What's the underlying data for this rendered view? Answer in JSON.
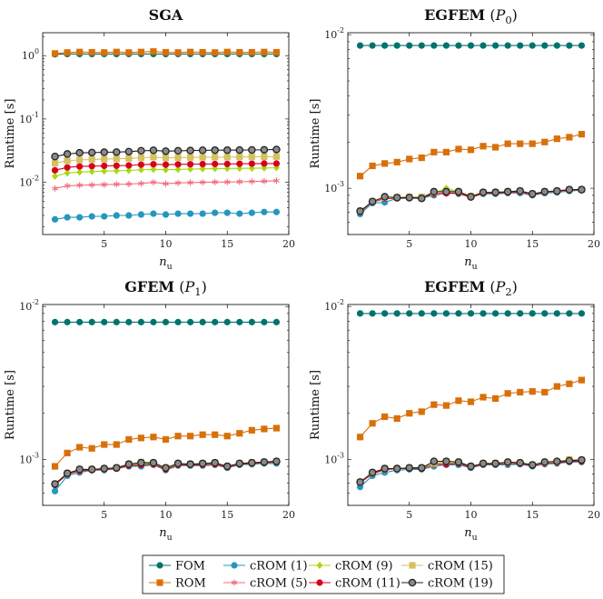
{
  "colors": {
    "FOM": "#00736e",
    "ROM": "#d8700a",
    "cROM (1)": "#2596be",
    "cROM (5)": "#f26d7d",
    "cROM (9)": "#a8d810",
    "cROM (11)": "#d7001b",
    "cROM (15)": "#d4c160",
    "cROM (19)": "#333333"
  },
  "legend": {
    "row1": [
      "FOM",
      "cROM (1)",
      "cROM (9)",
      "cROM (15)"
    ],
    "row2": [
      "ROM",
      "cROM (5)",
      "cROM (11)",
      "cROM (19)"
    ]
  },
  "chart_data": [
    {
      "type": "line",
      "title": "SGA",
      "xlabel": "n_u",
      "ylabel": "Runtime [s]",
      "yscale": "log",
      "xlim": [
        0,
        20
      ],
      "ylim": [
        0.0015,
        2.3
      ],
      "xticks": [
        5,
        10,
        15,
        20
      ],
      "yticks": [
        {
          "v": 0.01,
          "label": "10^-2"
        },
        {
          "v": 0.1,
          "label": "10^-1"
        },
        {
          "v": 1,
          "label": "10^0"
        }
      ],
      "x": [
        1,
        2,
        3,
        4,
        5,
        6,
        7,
        8,
        9,
        10,
        11,
        12,
        13,
        14,
        15,
        16,
        17,
        18,
        19
      ],
      "series": [
        {
          "name": "FOM",
          "values": [
            1.05,
            1.06,
            1.06,
            1.06,
            1.06,
            1.06,
            1.06,
            1.06,
            1.06,
            1.06,
            1.06,
            1.06,
            1.06,
            1.06,
            1.06,
            1.06,
            1.06,
            1.06,
            1.06
          ]
        },
        {
          "name": "ROM",
          "values": [
            1.08,
            1.12,
            1.14,
            1.13,
            1.12,
            1.14,
            1.12,
            1.14,
            1.16,
            1.13,
            1.12,
            1.14,
            1.13,
            1.12,
            1.14,
            1.13,
            1.13,
            1.14,
            1.13
          ]
        },
        {
          "name": "cROM (1)",
          "values": [
            0.0026,
            0.0028,
            0.0028,
            0.0029,
            0.0029,
            0.003,
            0.003,
            0.0031,
            0.0032,
            0.0031,
            0.0032,
            0.0032,
            0.0032,
            0.0033,
            0.0033,
            0.0032,
            0.0033,
            0.0034,
            0.0034
          ]
        },
        {
          "name": "cROM (5)",
          "values": [
            0.008,
            0.0088,
            0.009,
            0.0091,
            0.0092,
            0.0093,
            0.0094,
            0.0096,
            0.01,
            0.0095,
            0.0098,
            0.0099,
            0.01,
            0.0101,
            0.0101,
            0.0102,
            0.0103,
            0.0104,
            0.0106
          ]
        },
        {
          "name": "cROM (9)",
          "values": [
            0.0125,
            0.014,
            0.0145,
            0.0148,
            0.015,
            0.0152,
            0.0154,
            0.0158,
            0.016,
            0.0158,
            0.016,
            0.0162,
            0.0163,
            0.0165,
            0.0165,
            0.0166,
            0.0167,
            0.0168,
            0.017
          ]
        },
        {
          "name": "cROM (11)",
          "values": [
            0.0155,
            0.0172,
            0.0178,
            0.018,
            0.0182,
            0.0183,
            0.0185,
            0.019,
            0.0193,
            0.019,
            0.0192,
            0.0193,
            0.0194,
            0.0195,
            0.0195,
            0.0196,
            0.0197,
            0.0198,
            0.0198
          ]
        },
        {
          "name": "cROM (15)",
          "values": [
            0.02,
            0.022,
            0.0225,
            0.023,
            0.0232,
            0.0235,
            0.0238,
            0.0245,
            0.025,
            0.0243,
            0.0245,
            0.0247,
            0.0248,
            0.025,
            0.025,
            0.0251,
            0.0252,
            0.0253,
            0.0255
          ]
        },
        {
          "name": "cROM (19)",
          "values": [
            0.0255,
            0.028,
            0.0292,
            0.0295,
            0.0298,
            0.03,
            0.0305,
            0.0315,
            0.032,
            0.031,
            0.0315,
            0.0318,
            0.032,
            0.0322,
            0.0322,
            0.0323,
            0.0324,
            0.0326,
            0.033
          ]
        }
      ]
    },
    {
      "type": "line",
      "title": "EGFEM",
      "title_sub": "(P_0)",
      "xlabel": "n_u",
      "ylabel": "Runtime [s]",
      "yscale": "log",
      "xlim": [
        0,
        20
      ],
      "ylim": [
        0.0005,
        0.0103
      ],
      "xticks": [
        5,
        10,
        15,
        20
      ],
      "yticks": [
        {
          "v": 0.001,
          "label": "10^-3"
        },
        {
          "v": 0.01,
          "label": "10^-2"
        }
      ],
      "x": [
        1,
        2,
        3,
        4,
        5,
        6,
        7,
        8,
        9,
        10,
        11,
        12,
        13,
        14,
        15,
        16,
        17,
        18,
        19
      ],
      "series": [
        {
          "name": "FOM",
          "values": [
            0.0085,
            0.0085,
            0.0085,
            0.0085,
            0.0085,
            0.0085,
            0.0085,
            0.0085,
            0.0085,
            0.0085,
            0.0085,
            0.0085,
            0.0085,
            0.0085,
            0.0085,
            0.0085,
            0.0085,
            0.0085,
            0.0085
          ]
        },
        {
          "name": "ROM",
          "values": [
            0.0012,
            0.0014,
            0.00145,
            0.00148,
            0.00155,
            0.00158,
            0.00172,
            0.00172,
            0.0018,
            0.00178,
            0.00188,
            0.00185,
            0.00195,
            0.00195,
            0.00195,
            0.002,
            0.0021,
            0.00215,
            0.00225
          ]
        },
        {
          "name": "cROM (1)",
          "values": [
            0.00068,
            0.0008,
            0.00081,
            0.00086,
            0.00086,
            0.00086,
            0.0009,
            0.00093,
            0.00092,
            0.00088,
            0.00092,
            0.00092,
            0.00093,
            0.00093,
            0.0009,
            0.00093,
            0.00094,
            0.00096,
            0.00097
          ]
        },
        {
          "name": "cROM (5)",
          "values": [
            0.0007,
            0.00081,
            0.00085,
            0.00087,
            0.00087,
            0.00087,
            0.00092,
            0.00092,
            0.00093,
            0.00088,
            0.00093,
            0.00093,
            0.00094,
            0.00094,
            0.00091,
            0.00094,
            0.00095,
            0.00097,
            0.00098
          ]
        },
        {
          "name": "cROM (9)",
          "values": [
            0.0007,
            0.00082,
            0.00087,
            0.00087,
            0.00088,
            0.00088,
            0.00093,
            0.001,
            0.00095,
            0.00089,
            0.00094,
            0.00094,
            0.00095,
            0.00096,
            0.00092,
            0.00095,
            0.00096,
            0.00098,
            0.00098
          ]
        },
        {
          "name": "cROM (11)",
          "values": [
            0.0007,
            0.00082,
            0.00086,
            0.00086,
            0.00087,
            0.00087,
            0.00092,
            0.00093,
            0.00093,
            0.00087,
            0.00093,
            0.00093,
            0.00094,
            0.00095,
            0.00091,
            0.00094,
            0.00096,
            0.00097,
            0.00098
          ]
        },
        {
          "name": "cROM (15)",
          "values": [
            0.00071,
            0.00082,
            0.00087,
            0.00087,
            0.00088,
            0.00088,
            0.00094,
            0.00097,
            0.00095,
            0.00089,
            0.00094,
            0.00094,
            0.00095,
            0.00096,
            0.00092,
            0.00095,
            0.00096,
            0.00098,
            0.00098
          ]
        },
        {
          "name": "cROM (19)",
          "values": [
            0.00071,
            0.00082,
            0.00088,
            0.00087,
            0.00087,
            0.00086,
            0.00095,
            0.00095,
            0.00095,
            0.00088,
            0.00094,
            0.00094,
            0.00095,
            0.00096,
            0.00092,
            0.00095,
            0.00096,
            0.00098,
            0.00098
          ]
        }
      ]
    },
    {
      "type": "line",
      "title": "GFEM",
      "title_sub": "(P_1)",
      "xlabel": "n_u",
      "ylabel": "Runtime [s]",
      "yscale": "log",
      "xlim": [
        0,
        20
      ],
      "ylim": [
        0.0005,
        0.0103
      ],
      "xticks": [
        5,
        10,
        15,
        20
      ],
      "yticks": [
        {
          "v": 0.001,
          "label": "10^-3"
        },
        {
          "v": 0.01,
          "label": "10^-2"
        }
      ],
      "x": [
        1,
        2,
        3,
        4,
        5,
        6,
        7,
        8,
        9,
        10,
        11,
        12,
        13,
        14,
        15,
        16,
        17,
        18,
        19
      ],
      "series": [
        {
          "name": "FOM",
          "values": [
            0.0079,
            0.0079,
            0.0079,
            0.0079,
            0.0079,
            0.0079,
            0.0079,
            0.0079,
            0.0079,
            0.0079,
            0.0079,
            0.0079,
            0.0079,
            0.0079,
            0.0079,
            0.0079,
            0.0079,
            0.0079,
            0.0079
          ]
        },
        {
          "name": "ROM",
          "values": [
            0.0009,
            0.0011,
            0.0012,
            0.00118,
            0.00125,
            0.00125,
            0.00135,
            0.00138,
            0.0014,
            0.00135,
            0.00142,
            0.00142,
            0.00145,
            0.00145,
            0.00142,
            0.00148,
            0.00155,
            0.00158,
            0.0016
          ]
        },
        {
          "name": "cROM (1)",
          "values": [
            0.00062,
            0.00078,
            0.00082,
            0.00085,
            0.00085,
            0.00087,
            0.0009,
            0.0009,
            0.00092,
            0.00085,
            0.00091,
            0.00091,
            0.00091,
            0.00092,
            0.00088,
            0.00092,
            0.00093,
            0.00094,
            0.00094
          ]
        },
        {
          "name": "cROM (5)",
          "values": [
            0.00068,
            0.0008,
            0.00084,
            0.00085,
            0.00086,
            0.00087,
            0.00091,
            0.00092,
            0.00093,
            0.00086,
            0.00092,
            0.00092,
            0.00092,
            0.00093,
            0.00089,
            0.00093,
            0.00094,
            0.00095,
            0.00096
          ]
        },
        {
          "name": "cROM (9)",
          "values": [
            0.00068,
            0.0008,
            0.00085,
            0.00086,
            0.00086,
            0.00088,
            0.00092,
            0.00093,
            0.00094,
            0.00087,
            0.00093,
            0.00093,
            0.00093,
            0.00094,
            0.0009,
            0.00094,
            0.00095,
            0.00096,
            0.00097
          ]
        },
        {
          "name": "cROM (11)",
          "values": [
            0.00068,
            0.0008,
            0.00084,
            0.00085,
            0.00086,
            0.00087,
            0.00091,
            0.00092,
            0.00093,
            0.00086,
            0.00092,
            0.00092,
            0.00092,
            0.00093,
            0.00089,
            0.00093,
            0.00094,
            0.00095,
            0.00096
          ]
        },
        {
          "name": "cROM (15)",
          "values": [
            0.00069,
            0.00081,
            0.00086,
            0.00086,
            0.00087,
            0.00088,
            0.00093,
            0.00096,
            0.00095,
            0.00088,
            0.00094,
            0.00093,
            0.00094,
            0.00095,
            0.0009,
            0.00094,
            0.00095,
            0.00096,
            0.00097
          ]
        },
        {
          "name": "cROM (19)",
          "values": [
            0.00069,
            0.00081,
            0.00086,
            0.00086,
            0.00087,
            0.00088,
            0.00093,
            0.00095,
            0.00095,
            0.00088,
            0.00094,
            0.00093,
            0.00094,
            0.00095,
            0.0009,
            0.00094,
            0.00095,
            0.00096,
            0.00097
          ]
        }
      ]
    },
    {
      "type": "line",
      "title": "EGFEM",
      "title_sub": "(P_2)",
      "xlabel": "n_u",
      "ylabel": "Runtime [s]",
      "yscale": "log",
      "xlim": [
        0,
        20
      ],
      "ylim": [
        0.0005,
        0.0103
      ],
      "xticks": [
        5,
        10,
        15,
        20
      ],
      "yticks": [
        {
          "v": 0.001,
          "label": "10^-3"
        },
        {
          "v": 0.01,
          "label": "10^-2"
        }
      ],
      "x": [
        1,
        2,
        3,
        4,
        5,
        6,
        7,
        8,
        9,
        10,
        11,
        12,
        13,
        14,
        15,
        16,
        17,
        18,
        19
      ],
      "series": [
        {
          "name": "FOM",
          "values": [
            0.009,
            0.009,
            0.009,
            0.009,
            0.009,
            0.009,
            0.009,
            0.009,
            0.009,
            0.009,
            0.009,
            0.009,
            0.009,
            0.009,
            0.009,
            0.009,
            0.009,
            0.009,
            0.009
          ]
        },
        {
          "name": "ROM",
          "values": [
            0.0014,
            0.00172,
            0.0019,
            0.00185,
            0.002,
            0.00205,
            0.00228,
            0.00225,
            0.00242,
            0.00238,
            0.00255,
            0.0025,
            0.0027,
            0.00275,
            0.00278,
            0.00275,
            0.003,
            0.00312,
            0.0033
          ]
        },
        {
          "name": "cROM (1)",
          "values": [
            0.00066,
            0.00078,
            0.00082,
            0.00085,
            0.00086,
            0.00086,
            0.0009,
            0.00092,
            0.00092,
            0.00088,
            0.00092,
            0.00092,
            0.00092,
            0.00093,
            0.0009,
            0.00093,
            0.00094,
            0.00096,
            0.00096
          ]
        },
        {
          "name": "cROM (5)",
          "values": [
            0.0007,
            0.0008,
            0.00085,
            0.00087,
            0.00087,
            0.00087,
            0.00092,
            0.00093,
            0.00094,
            0.00089,
            0.00093,
            0.00093,
            0.00094,
            0.00094,
            0.00091,
            0.00094,
            0.00095,
            0.00097,
            0.00098
          ]
        },
        {
          "name": "cROM (9)",
          "values": [
            0.00071,
            0.00081,
            0.00087,
            0.00087,
            0.00088,
            0.00088,
            0.00093,
            0.00094,
            0.00095,
            0.0009,
            0.00094,
            0.00094,
            0.00095,
            0.00095,
            0.00092,
            0.00095,
            0.00096,
            0.00099,
            0.00098
          ]
        },
        {
          "name": "cROM (11)",
          "values": [
            0.00071,
            0.00081,
            0.00086,
            0.00087,
            0.00087,
            0.00087,
            0.00093,
            0.00093,
            0.00094,
            0.00089,
            0.00093,
            0.00093,
            0.00094,
            0.00094,
            0.00091,
            0.00094,
            0.00095,
            0.00097,
            0.00097
          ]
        },
        {
          "name": "cROM (15)",
          "values": [
            0.00071,
            0.00082,
            0.00087,
            0.00087,
            0.00088,
            0.00088,
            0.00094,
            0.00097,
            0.00096,
            0.0009,
            0.00094,
            0.00094,
            0.00095,
            0.00095,
            0.00092,
            0.00095,
            0.00096,
            0.001,
            0.00099
          ]
        },
        {
          "name": "cROM (19)",
          "values": [
            0.00071,
            0.00082,
            0.00087,
            0.00087,
            0.00088,
            0.00088,
            0.00097,
            0.00097,
            0.00096,
            0.0009,
            0.00094,
            0.00094,
            0.00096,
            0.00095,
            0.00092,
            0.00096,
            0.00097,
            0.00098,
            0.00099
          ]
        }
      ]
    }
  ]
}
